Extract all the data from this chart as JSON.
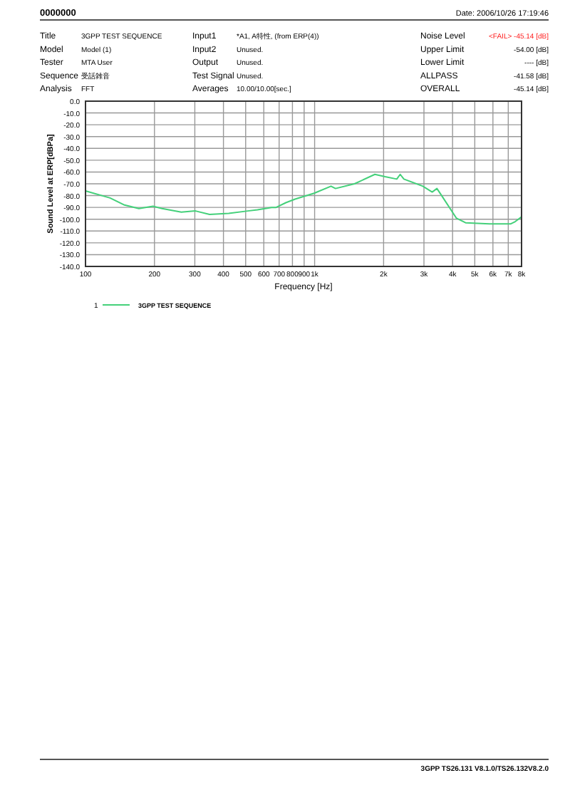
{
  "chart_data": {
    "type": "line",
    "xlabel": "Frequency [Hz]",
    "ylabel": "Sound Level at ERP[dBPa]",
    "x": [
      100,
      128,
      148,
      171,
      197,
      216,
      262,
      302,
      348,
      422,
      511,
      563,
      649,
      679,
      749,
      822,
      995,
      1179,
      1233,
      1493,
      1832,
      2030,
      2283,
      2363,
      2452,
      2966,
      3259,
      3418,
      3585,
      4152,
      4557,
      5792,
      7161,
      7507,
      8000
    ],
    "series": [
      {
        "name": "3GPP TEST SEQUENCE",
        "color": "#44d07a",
        "values": [
          -76,
          -82,
          -88,
          -91,
          -89,
          -91,
          -94,
          -93,
          -96,
          -95,
          -93,
          -92,
          -90,
          -90,
          -86,
          -83,
          -78,
          -72,
          -74,
          -70,
          -62,
          -64,
          -66,
          -62,
          -66,
          -72,
          -77,
          -74,
          -80,
          -99,
          -103,
          -104,
          -104,
          -102,
          -98
        ]
      }
    ],
    "legend": "bottom",
    "legend_title": "1",
    "log": "x",
    "grid": true,
    "marker": "none",
    "line_style": "solid",
    "xlim": [
      100,
      8000
    ],
    "ylim": [
      -140,
      0
    ],
    "xticks": [
      100,
      200,
      300,
      400,
      500,
      600,
      700,
      800,
      900,
      {
        "value": 1000,
        "label": "1k"
      },
      {
        "value": 2000,
        "label": "2k"
      },
      {
        "value": 3000,
        "label": "3k"
      },
      {
        "value": 4000,
        "label": "4k"
      },
      {
        "value": 5000,
        "label": "5k"
      },
      {
        "value": 6000,
        "label": "6k"
      },
      {
        "value": 7000,
        "label": "7k"
      },
      {
        "value": 8000,
        "label": "8k"
      }
    ],
    "yticks": [
      {
        "value": 0,
        "label": "0.0"
      },
      {
        "value": -10,
        "label": "-10.0"
      },
      {
        "value": -20,
        "label": "-20.0"
      },
      {
        "value": -30,
        "label": "-30.0"
      },
      {
        "value": -40,
        "label": "-40.0"
      },
      {
        "value": -50,
        "label": "-50.0"
      },
      {
        "value": -60,
        "label": "-60.0"
      },
      {
        "value": -70,
        "label": "-70.0"
      },
      {
        "value": -80,
        "label": "-80.0"
      },
      {
        "value": -90,
        "label": "-90.0"
      },
      {
        "value": -100,
        "label": "-100.0"
      },
      {
        "value": -110,
        "label": "-110.0"
      },
      {
        "value": -120,
        "label": "-120.0"
      },
      {
        "value": -130,
        "label": "-130.0"
      },
      {
        "value": -140,
        "label": "-140.0"
      }
    ],
    "annotations": [
      "0000000",
      "Date: 2006/10/26 17:19:46",
      "Title",
      "3GPP TEST SEQUENCE",
      "Model",
      "Model (1)",
      "Tester",
      "MTA User",
      "Sequence",
      "受話雑音",
      "Analysis",
      "FFT",
      "Input1",
      "*A1, A特性, (from ERP(4))",
      "Input2",
      "Unused.",
      "Output",
      "Unused.",
      "Test Signal",
      "Unused.",
      "Averages",
      "10.00/10.00[sec.]",
      "Noise Level",
      "<FAIL> -45.14 [dB]",
      "Upper Limit",
      "-54.00 [dB]",
      "Lower Limit",
      "---- [dB]",
      "ALLPASS",
      "-41.58 [dB]",
      "OVERALL",
      "-45.14 [dB]",
      "3GPP TS26.131 V8.1.0/TS26.132V8.2.0"
    ]
  }
}
